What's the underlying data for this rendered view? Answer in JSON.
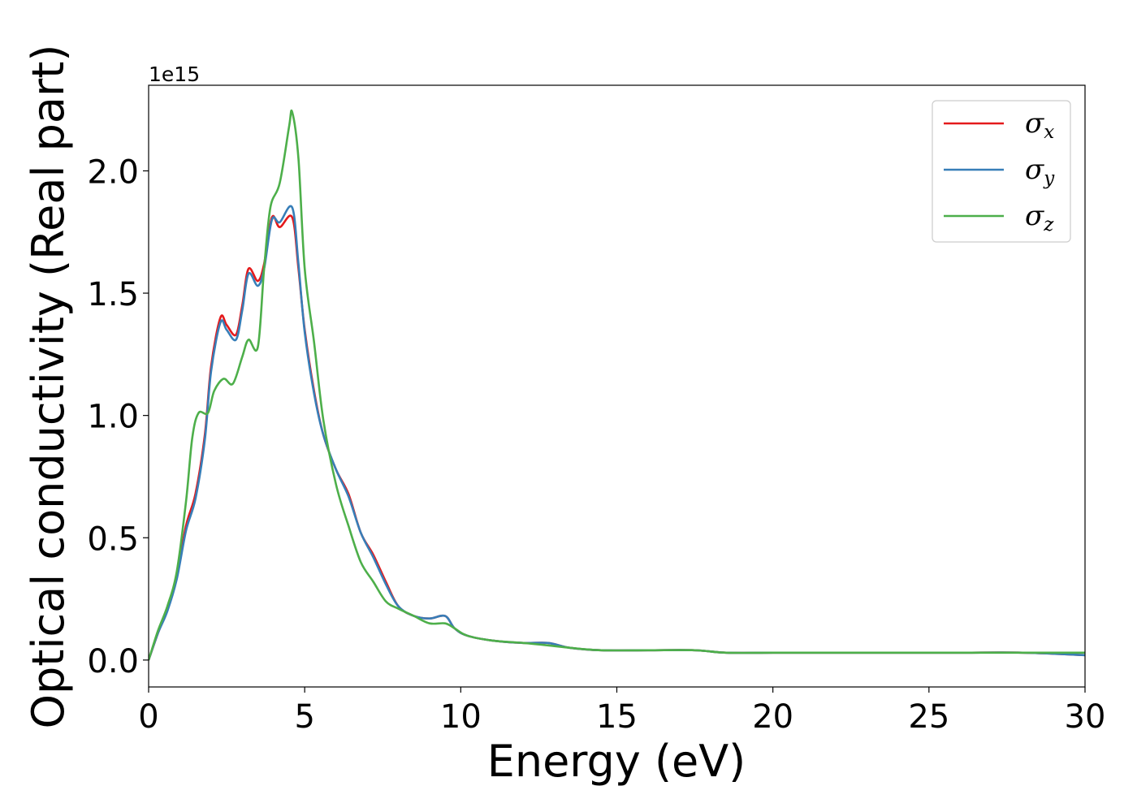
{
  "chart_data": {
    "type": "line",
    "title": "",
    "xlabel": "Energy (eV)",
    "ylabel": "Optical conductivity (Real part)",
    "y_offset_label": "1e15",
    "xlim": [
      0,
      30
    ],
    "ylim": [
      -0.11,
      2.35
    ],
    "x_ticks": [
      0,
      5,
      10,
      15,
      20,
      25,
      30
    ],
    "x_tick_labels": [
      "0",
      "5",
      "10",
      "15",
      "20",
      "25",
      "30"
    ],
    "y_ticks": [
      0.0,
      0.5,
      1.0,
      1.5,
      2.0
    ],
    "y_tick_labels": [
      "0.0",
      "0.5",
      "1.0",
      "1.5",
      "2.0"
    ],
    "grid": false,
    "legend_position": "top-right",
    "series": [
      {
        "name": "σx",
        "symbol": "σ",
        "subscript": "x",
        "color": "#e41a1c",
        "x": [
          0,
          0.3,
          0.6,
          0.9,
          1.2,
          1.5,
          1.8,
          2.0,
          2.3,
          2.5,
          2.8,
          3.0,
          3.2,
          3.5,
          3.7,
          3.95,
          4.2,
          4.6,
          4.8,
          5.0,
          5.3,
          5.6,
          6.0,
          6.4,
          6.8,
          7.2,
          7.6,
          8.0,
          8.5,
          9.0,
          9.5,
          9.8,
          10.2,
          11,
          12,
          12.8,
          13.5,
          14.5,
          16,
          17.5,
          18.5,
          20,
          22,
          24,
          26,
          28,
          30
        ],
        "y": [
          0.0,
          0.11,
          0.21,
          0.34,
          0.55,
          0.68,
          0.92,
          1.2,
          1.4,
          1.37,
          1.33,
          1.45,
          1.6,
          1.55,
          1.62,
          1.81,
          1.77,
          1.81,
          1.6,
          1.35,
          1.1,
          0.92,
          0.78,
          0.68,
          0.52,
          0.43,
          0.32,
          0.22,
          0.18,
          0.17,
          0.18,
          0.13,
          0.1,
          0.08,
          0.07,
          0.07,
          0.05,
          0.04,
          0.04,
          0.04,
          0.03,
          0.03,
          0.03,
          0.03,
          0.03,
          0.03,
          0.02
        ]
      },
      {
        "name": "σy",
        "symbol": "σ",
        "subscript": "y",
        "color": "#377eb8",
        "x": [
          0,
          0.3,
          0.6,
          0.9,
          1.2,
          1.5,
          1.8,
          2.0,
          2.3,
          2.5,
          2.8,
          3.0,
          3.2,
          3.5,
          3.7,
          3.95,
          4.2,
          4.6,
          4.8,
          5.0,
          5.3,
          5.6,
          6.0,
          6.4,
          6.8,
          7.2,
          7.6,
          8.0,
          8.5,
          9.0,
          9.5,
          9.8,
          10.2,
          11,
          12,
          12.8,
          13.5,
          14.5,
          16,
          17.5,
          18.5,
          20,
          22,
          24,
          26,
          28,
          30
        ],
        "y": [
          0.0,
          0.11,
          0.2,
          0.33,
          0.53,
          0.66,
          0.9,
          1.18,
          1.38,
          1.35,
          1.31,
          1.43,
          1.58,
          1.53,
          1.6,
          1.8,
          1.79,
          1.85,
          1.62,
          1.34,
          1.09,
          0.92,
          0.78,
          0.67,
          0.52,
          0.42,
          0.31,
          0.22,
          0.18,
          0.17,
          0.18,
          0.13,
          0.1,
          0.08,
          0.07,
          0.07,
          0.05,
          0.04,
          0.04,
          0.04,
          0.03,
          0.03,
          0.03,
          0.03,
          0.03,
          0.03,
          0.02
        ]
      },
      {
        "name": "σz",
        "symbol": "σ",
        "subscript": "z",
        "color": "#4daf4a",
        "x": [
          0,
          0.3,
          0.6,
          0.9,
          1.2,
          1.4,
          1.6,
          1.9,
          2.1,
          2.4,
          2.7,
          3.0,
          3.2,
          3.5,
          3.7,
          3.9,
          4.2,
          4.5,
          4.6,
          4.8,
          5.0,
          5.3,
          5.6,
          6.0,
          6.4,
          6.8,
          7.2,
          7.6,
          8.0,
          8.5,
          9.0,
          9.5,
          9.8,
          10.2,
          11,
          12,
          12.8,
          13.5,
          14.5,
          16,
          17.5,
          18.5,
          20,
          22,
          24,
          26,
          28,
          30
        ],
        "y": [
          0.0,
          0.12,
          0.22,
          0.36,
          0.65,
          0.91,
          1.01,
          1.01,
          1.1,
          1.15,
          1.13,
          1.24,
          1.31,
          1.28,
          1.6,
          1.85,
          1.95,
          2.18,
          2.24,
          2.05,
          1.6,
          1.3,
          0.98,
          0.72,
          0.55,
          0.4,
          0.32,
          0.24,
          0.21,
          0.18,
          0.15,
          0.15,
          0.13,
          0.1,
          0.08,
          0.07,
          0.06,
          0.05,
          0.04,
          0.04,
          0.04,
          0.03,
          0.03,
          0.03,
          0.03,
          0.03,
          0.03,
          0.03
        ]
      }
    ]
  }
}
